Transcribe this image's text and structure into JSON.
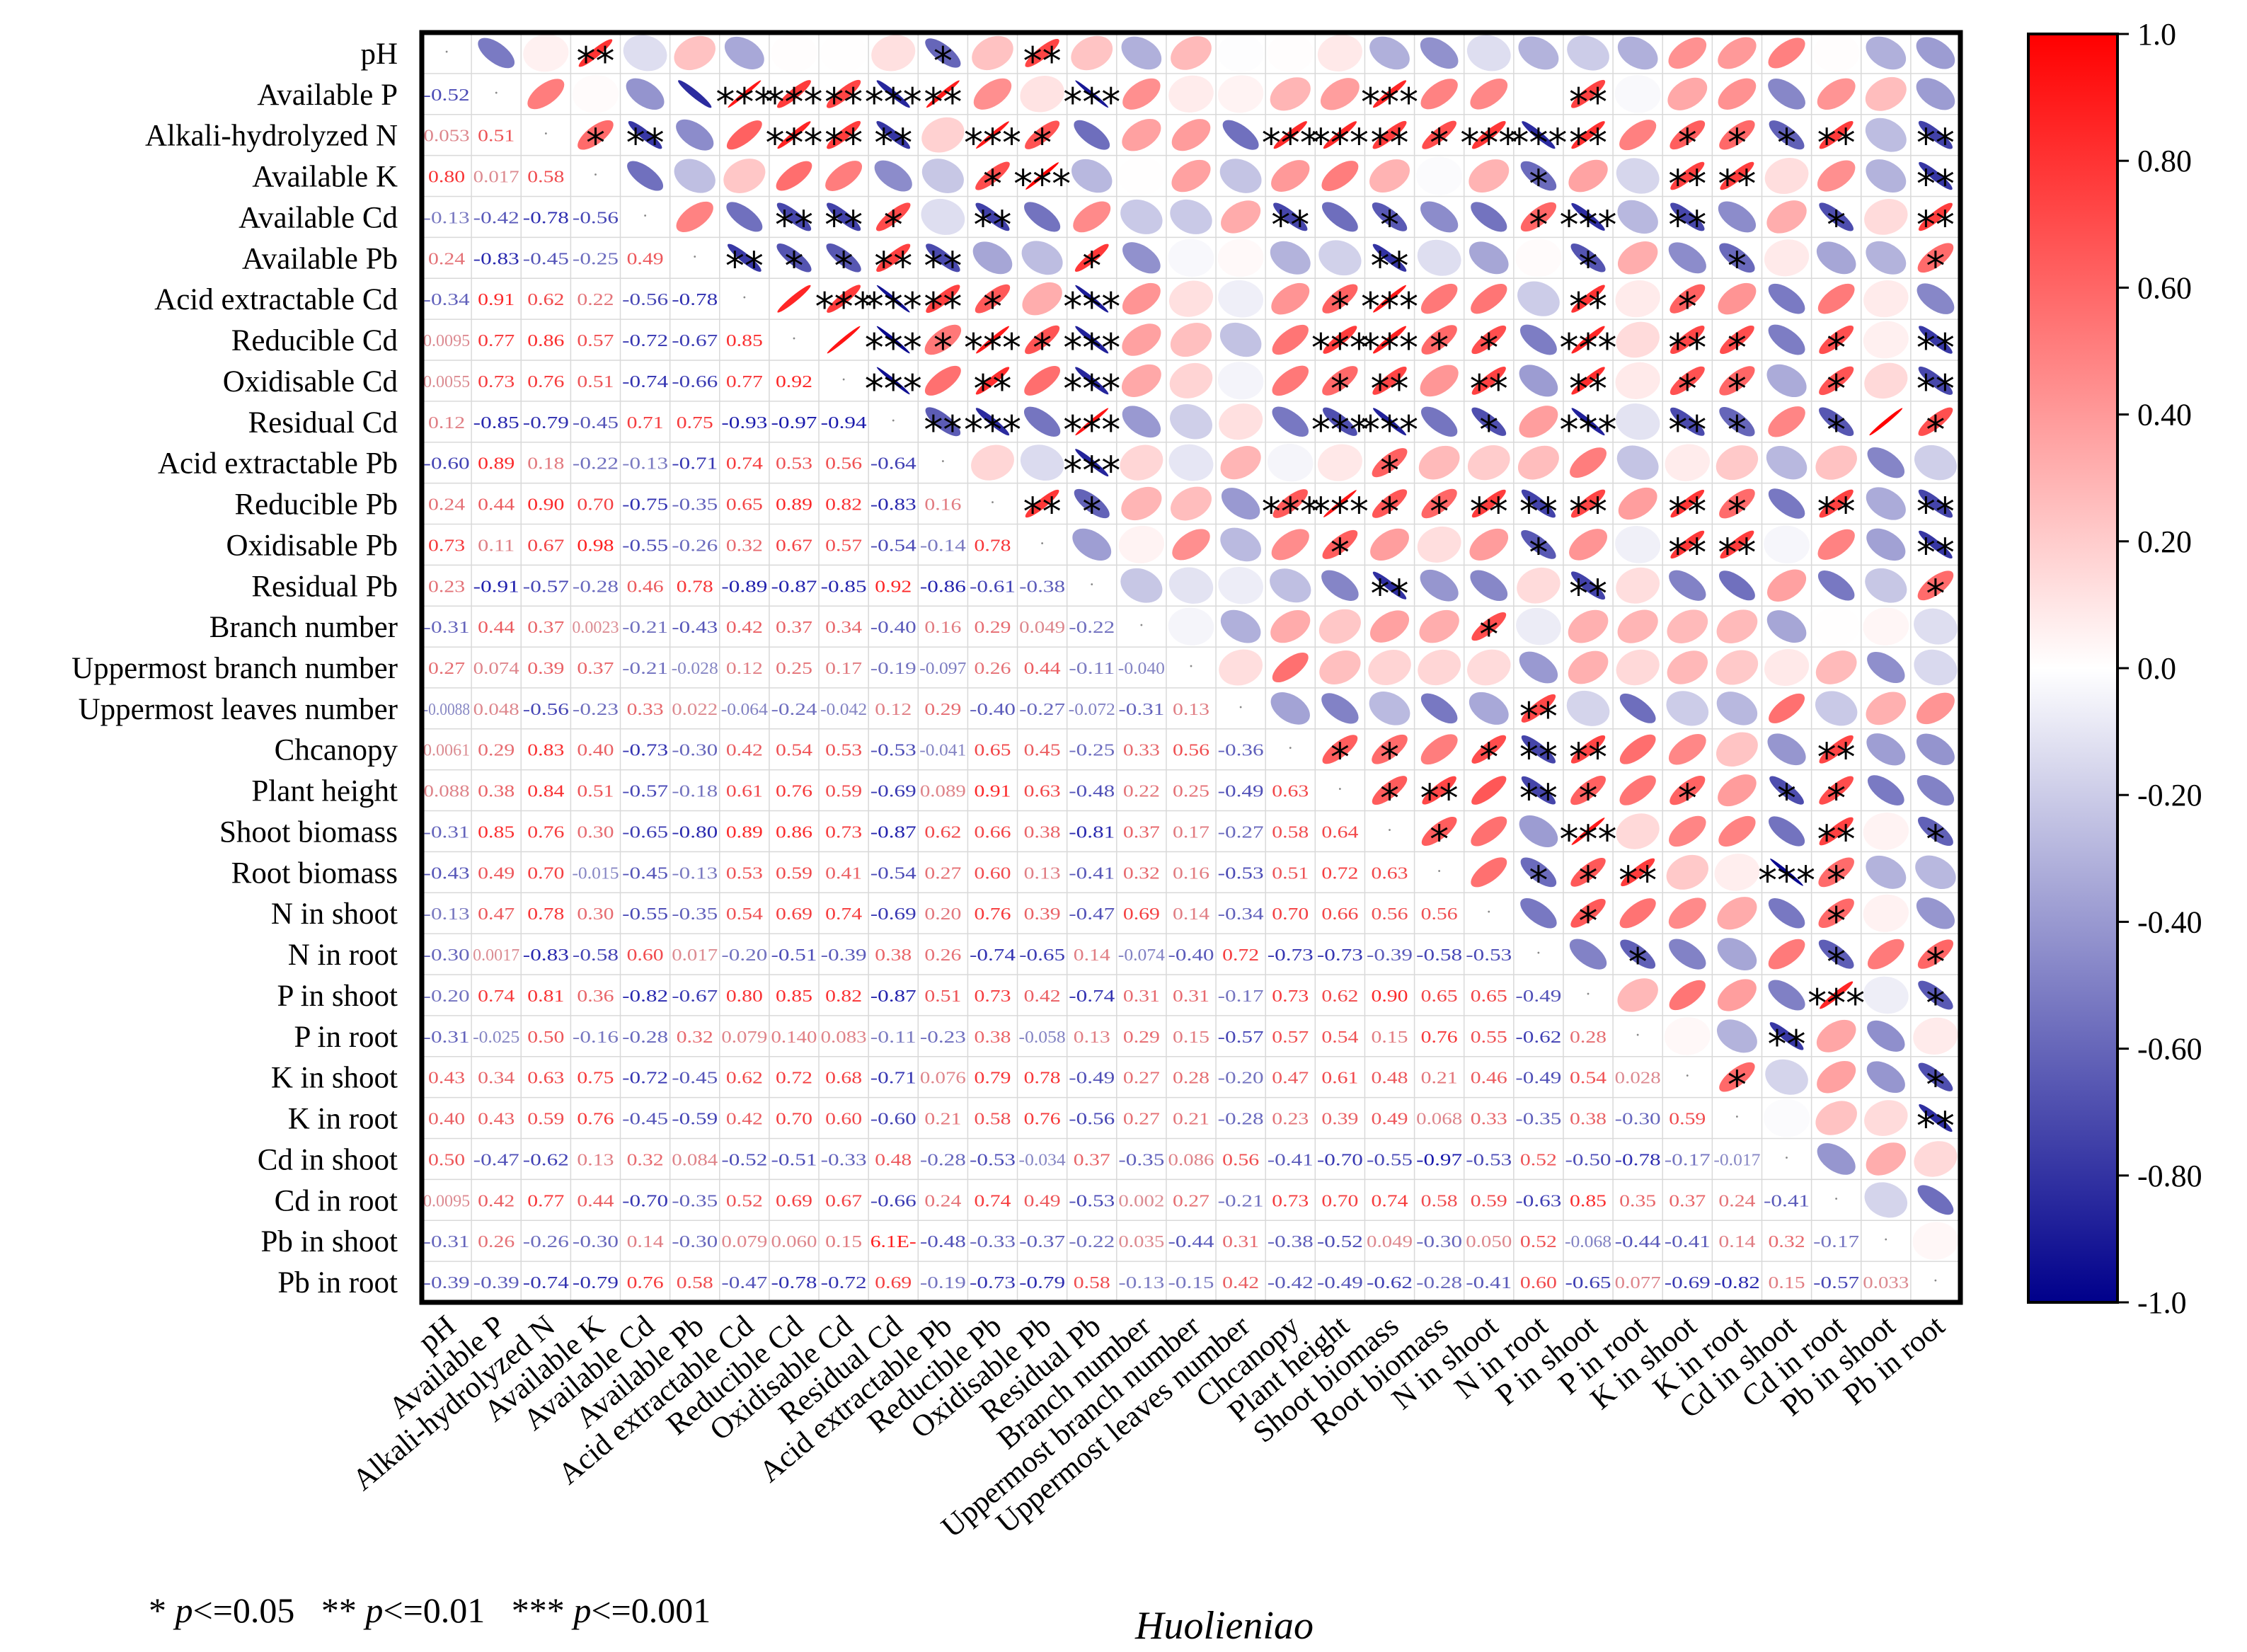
{
  "chart_data": {
    "type": "heatmap",
    "subtype": "correlation-matrix",
    "title": "Huolieniao",
    "variables": [
      "pH",
      "Available P",
      "Alkali-hydrolyzed N",
      "Available K",
      "Available Cd",
      "Available Pb",
      "Acid extractable Cd",
      "Reducible Cd",
      "Oxidisable Cd",
      "Residual Cd",
      "Acid extractable Pb",
      "Reducible Pb",
      "Oxidisable Pb",
      "Residual Pb",
      "Branch number",
      "Uppermost branch number",
      "Uppermost leaves number",
      "Chcanopy",
      "Plant height",
      "Shoot biomass",
      "Root biomass",
      "N in shoot",
      "N in root",
      "P in shoot",
      "P in root",
      "K in shoot",
      "K in root",
      "Cd in shoot",
      "Cd in root",
      "Pb in shoot",
      "Pb in root"
    ],
    "lower_labels": [
      [
        "-0.52"
      ],
      [
        "0.053",
        "0.51"
      ],
      [
        "0.80",
        "0.017",
        "0.58"
      ],
      [
        "-0.13",
        "-0.42",
        "-0.78",
        "-0.56"
      ],
      [
        "0.24",
        "-0.83",
        "-0.45",
        "-0.25",
        "0.49"
      ],
      [
        "-0.34",
        "0.91",
        "0.62",
        "0.22",
        "-0.56",
        "-0.78"
      ],
      [
        "0.0095",
        "0.77",
        "0.86",
        "0.57",
        "-0.72",
        "-0.67",
        "0.85"
      ],
      [
        "0.0055",
        "0.73",
        "0.76",
        "0.51",
        "-0.74",
        "-0.66",
        "0.77",
        "0.92"
      ],
      [
        "0.12",
        "-0.85",
        "-0.79",
        "-0.45",
        "0.71",
        "0.75",
        "-0.93",
        "-0.97",
        "-0.94"
      ],
      [
        "-0.60",
        "0.89",
        "0.18",
        "-0.22",
        "-0.13",
        "-0.71",
        "0.74",
        "0.53",
        "0.56",
        "-0.64"
      ],
      [
        "0.24",
        "0.44",
        "0.90",
        "0.70",
        "-0.75",
        "-0.35",
        "0.65",
        "0.89",
        "0.82",
        "-0.83",
        "0.16"
      ],
      [
        "0.73",
        "0.11",
        "0.67",
        "0.98",
        "-0.55",
        "-0.26",
        "0.32",
        "0.67",
        "0.57",
        "-0.54",
        "-0.14",
        "0.78"
      ],
      [
        "0.23",
        "-0.91",
        "-0.57",
        "-0.28",
        "0.46",
        "0.78",
        "-0.89",
        "-0.87",
        "-0.85",
        "0.92",
        "-0.86",
        "-0.61",
        "-0.38"
      ],
      [
        "-0.31",
        "0.44",
        "0.37",
        "0.0023",
        "-0.21",
        "-0.43",
        "0.42",
        "0.37",
        "0.34",
        "-0.40",
        "0.16",
        "0.29",
        "0.049",
        "-0.22"
      ],
      [
        "0.27",
        "0.074",
        "0.39",
        "0.37",
        "-0.21",
        "-0.028",
        "0.12",
        "0.25",
        "0.17",
        "-0.19",
        "-0.097",
        "0.26",
        "0.44",
        "-0.11",
        "-0.040"
      ],
      [
        "-0.0088",
        "0.048",
        "-0.56",
        "-0.23",
        "0.33",
        "0.022",
        "-0.064",
        "-0.24",
        "-0.042",
        "0.12",
        "0.29",
        "-0.40",
        "-0.27",
        "-0.072",
        "-0.31",
        "0.13"
      ],
      [
        "0.0061",
        "0.29",
        "0.83",
        "0.40",
        "-0.73",
        "-0.30",
        "0.42",
        "0.54",
        "0.53",
        "-0.53",
        "-0.041",
        "0.65",
        "0.45",
        "-0.25",
        "0.33",
        "0.56",
        "-0.36"
      ],
      [
        "0.088",
        "0.38",
        "0.84",
        "0.51",
        "-0.57",
        "-0.18",
        "0.61",
        "0.76",
        "0.59",
        "-0.69",
        "0.089",
        "0.91",
        "0.63",
        "-0.48",
        "0.22",
        "0.25",
        "-0.49",
        "0.63"
      ],
      [
        "-0.31",
        "0.85",
        "0.76",
        "0.30",
        "-0.65",
        "-0.80",
        "0.89",
        "0.86",
        "0.73",
        "-0.87",
        "0.62",
        "0.66",
        "0.38",
        "-0.81",
        "0.37",
        "0.17",
        "-0.27",
        "0.58",
        "0.64"
      ],
      [
        "-0.43",
        "0.49",
        "0.70",
        "-0.015",
        "-0.45",
        "-0.13",
        "0.53",
        "0.59",
        "0.41",
        "-0.54",
        "0.27",
        "0.60",
        "0.13",
        "-0.41",
        "0.32",
        "0.16",
        "-0.53",
        "0.51",
        "0.72",
        "0.63"
      ],
      [
        "-0.13",
        "0.47",
        "0.78",
        "0.30",
        "-0.55",
        "-0.35",
        "0.54",
        "0.69",
        "0.74",
        "-0.69",
        "0.20",
        "0.76",
        "0.39",
        "-0.47",
        "0.69",
        "0.14",
        "-0.34",
        "0.70",
        "0.66",
        "0.56",
        "0.56"
      ],
      [
        "-0.30",
        "0.0017",
        "-0.83",
        "-0.58",
        "0.60",
        "0.017",
        "-0.20",
        "-0.51",
        "-0.39",
        "0.38",
        "0.26",
        "-0.74",
        "-0.65",
        "0.14",
        "-0.074",
        "-0.40",
        "0.72",
        "-0.73",
        "-0.73",
        "-0.39",
        "-0.58",
        "-0.53"
      ],
      [
        "-0.20",
        "0.74",
        "0.81",
        "0.36",
        "-0.82",
        "-0.67",
        "0.80",
        "0.85",
        "0.82",
        "-0.87",
        "0.51",
        "0.73",
        "0.42",
        "-0.74",
        "0.31",
        "0.31",
        "-0.17",
        "0.73",
        "0.62",
        "0.90",
        "0.65",
        "0.65",
        "-0.49"
      ],
      [
        "-0.31",
        "-0.025",
        "0.50",
        "-0.16",
        "-0.28",
        "0.32",
        "0.079",
        "0.140",
        "0.083",
        "-0.11",
        "-0.23",
        "0.38",
        "-0.058",
        "0.13",
        "0.29",
        "0.15",
        "-0.57",
        "0.57",
        "0.54",
        "0.15",
        "0.76",
        "0.55",
        "-0.62",
        "0.28"
      ],
      [
        "0.43",
        "0.34",
        "0.63",
        "0.75",
        "-0.72",
        "-0.45",
        "0.62",
        "0.72",
        "0.68",
        "-0.71",
        "0.076",
        "0.79",
        "0.78",
        "-0.49",
        "0.27",
        "0.28",
        "-0.20",
        "0.47",
        "0.61",
        "0.48",
        "0.21",
        "0.46",
        "-0.49",
        "0.54",
        "0.028"
      ],
      [
        "0.40",
        "0.43",
        "0.59",
        "0.76",
        "-0.45",
        "-0.59",
        "0.42",
        "0.70",
        "0.60",
        "-0.60",
        "0.21",
        "0.58",
        "0.76",
        "-0.56",
        "0.27",
        "0.21",
        "-0.28",
        "0.23",
        "0.39",
        "0.49",
        "0.068",
        "0.33",
        "-0.35",
        "0.38",
        "-0.30",
        "0.59"
      ],
      [
        "0.50",
        "-0.47",
        "-0.62",
        "0.13",
        "0.32",
        "0.084",
        "-0.52",
        "-0.51",
        "-0.33",
        "0.48",
        "-0.28",
        "-0.53",
        "-0.034",
        "0.37",
        "-0.35",
        "0.086",
        "0.56",
        "-0.41",
        "-0.70",
        "-0.55",
        "-0.97",
        "-0.53",
        "0.52",
        "-0.50",
        "-0.78",
        "-0.17",
        "-0.017"
      ],
      [
        "0.0095",
        "0.42",
        "0.77",
        "0.44",
        "-0.70",
        "-0.35",
        "0.52",
        "0.69",
        "0.67",
        "-0.66",
        "0.24",
        "0.74",
        "0.49",
        "-0.53",
        "0.002",
        "0.27",
        "-0.21",
        "0.73",
        "0.70",
        "0.74",
        "0.58",
        "0.59",
        "-0.63",
        "0.85",
        "0.35",
        "0.37",
        "0.24",
        "-0.41"
      ],
      [
        "-0.31",
        "0.26",
        "-0.26",
        "-0.30",
        "0.14",
        "-0.30",
        "0.079",
        "0.060",
        "0.15",
        "6.1E-",
        "-0.48",
        "-0.33",
        "-0.37",
        "-0.22",
        "0.035",
        "-0.44",
        "0.31",
        "-0.38",
        "-0.52",
        "0.049",
        "-0.30",
        "0.050",
        "0.52",
        "-0.068",
        "-0.44",
        "-0.41",
        "0.14",
        "0.32",
        "-0.17"
      ],
      [
        "-0.39",
        "-0.39",
        "-0.74",
        "-0.79",
        "0.76",
        "0.58",
        "-0.47",
        "-0.78",
        "-0.72",
        "0.69",
        "-0.19",
        "-0.73",
        "-0.79",
        "0.58",
        "-0.13",
        "-0.15",
        "0.42",
        "-0.42",
        "-0.49",
        "-0.62",
        "-0.28",
        "-0.41",
        "0.60",
        "-0.65",
        "0.077",
        "-0.69",
        "-0.82",
        "0.15",
        "-0.57",
        "0.033"
      ]
    ],
    "significance": {
      "0,3": "**",
      "0,10": "*",
      "0,12": "**",
      "1,6": "***",
      "1,7": "***",
      "1,8": "**",
      "1,9": "***",
      "1,10": "**",
      "1,13": "***",
      "1,19": "***",
      "1,23": "**",
      "2,3": "*",
      "2,4": "**",
      "2,7": "***",
      "2,8": "**",
      "2,9": "**",
      "2,11": "***",
      "2,12": "*",
      "2,17": "***",
      "2,18": "***",
      "2,19": "**",
      "2,20": "*",
      "2,21": "***",
      "2,22": "***",
      "2,23": "**",
      "2,25": "*",
      "2,26": "*",
      "2,27": "*",
      "2,28": "**",
      "2,30": "**",
      "3,11": "*",
      "3,12": "***",
      "3,22": "*",
      "3,25": "**",
      "3,26": "**",
      "3,30": "**",
      "4,7": "**",
      "4,8": "**",
      "4,9": "*",
      "4,11": "**",
      "4,17": "**",
      "4,19": "*",
      "4,22": "*",
      "4,23": "***",
      "4,25": "**",
      "4,28": "*",
      "4,30": "**",
      "5,6": "**",
      "5,7": "*",
      "5,8": "*",
      "5,9": "**",
      "5,10": "**",
      "5,13": "*",
      "5,19": "**",
      "5,23": "*",
      "5,26": "*",
      "5,30": "*",
      "6,8": "***",
      "6,9": "***",
      "6,10": "**",
      "6,11": "*",
      "6,13": "***",
      "6,18": "*",
      "6,19": "***",
      "6,23": "**",
      "6,25": "*",
      "7,9": "***",
      "7,10": "*",
      "7,11": "***",
      "7,12": "*",
      "7,13": "***",
      "7,18": "***",
      "7,19": "***",
      "7,20": "*",
      "7,21": "*",
      "7,23": "***",
      "7,25": "**",
      "7,26": "*",
      "7,28": "*",
      "7,30": "**",
      "8,9": "***",
      "8,11": "**",
      "8,13": "***",
      "8,18": "*",
      "8,19": "**",
      "8,21": "**",
      "8,23": "**",
      "8,25": "*",
      "8,26": "*",
      "8,28": "*",
      "8,30": "**",
      "9,10": "**",
      "9,11": "***",
      "9,13": "***",
      "9,18": "***",
      "9,19": "***",
      "9,21": "*",
      "9,23": "***",
      "9,25": "**",
      "9,26": "*",
      "9,28": "*",
      "9,30": "*",
      "10,13": "***",
      "10,19": "*",
      "11,12": "**",
      "11,13": "*",
      "11,17": "***",
      "11,18": "***",
      "11,19": "*",
      "11,20": "*",
      "11,21": "**",
      "11,22": "**",
      "11,23": "**",
      "11,25": "**",
      "11,26": "*",
      "11,28": "**",
      "11,30": "**",
      "12,18": "*",
      "12,22": "*",
      "12,25": "**",
      "12,26": "**",
      "12,30": "**",
      "13,19": "**",
      "13,23": "**",
      "13,30": "*",
      "14,21": "*",
      "16,22": "**",
      "17,18": "*",
      "17,19": "*",
      "17,21": "*",
      "17,22": "**",
      "17,23": "**",
      "17,28": "**",
      "18,19": "*",
      "18,20": "**",
      "18,22": "**",
      "18,23": "*",
      "18,25": "*",
      "18,27": "*",
      "18,28": "*",
      "19,20": "*",
      "19,23": "***",
      "19,28": "**",
      "19,30": "*",
      "20,22": "*",
      "20,23": "*",
      "20,24": "**",
      "20,27": "***",
      "20,28": "*",
      "21,23": "*",
      "21,28": "*",
      "22,24": "*",
      "22,28": "*",
      "22,30": "*",
      "23,28": "***",
      "23,30": "*",
      "24,27": "**",
      "25,26": "*",
      "25,30": "*",
      "26,30": "**"
    },
    "colorbar": {
      "min": -1.0,
      "max": 1.0,
      "ticks": [
        "1.0",
        "0.80",
        "0.60",
        "0.40",
        "0.20",
        "0.0",
        "-0.20",
        "-0.40",
        "-0.60",
        "-0.80",
        "-1.0"
      ],
      "colors": {
        "high": "#ff0000",
        "mid": "#ffffff",
        "low": "#00008b"
      }
    },
    "footnote": "* p<=0.05   ** p<=0.01   *** p<=0.001"
  }
}
